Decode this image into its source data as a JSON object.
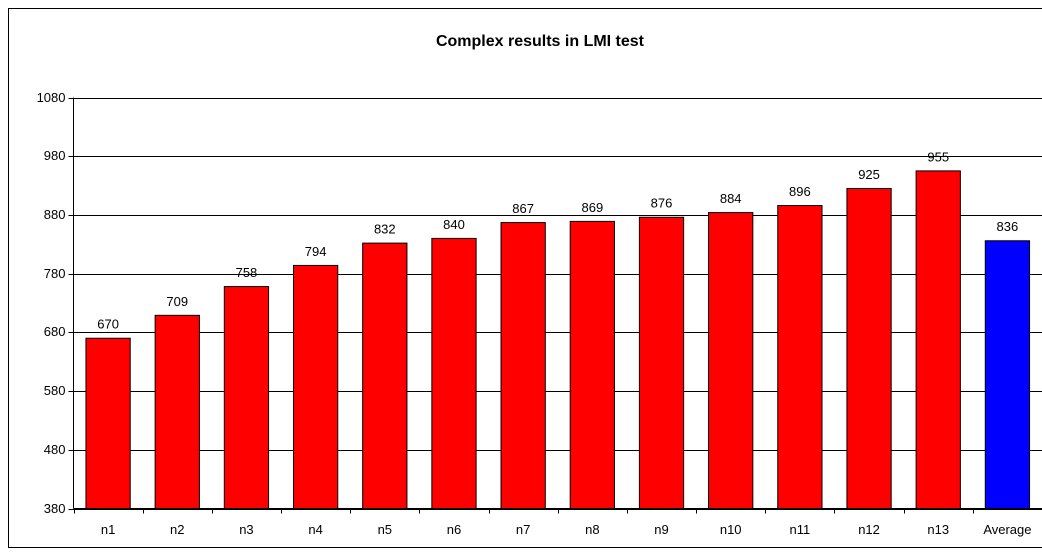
{
  "chart_data": {
    "type": "bar",
    "title": "Complex results in LMI test",
    "categories": [
      "n1",
      "n2",
      "n3",
      "n4",
      "n5",
      "n6",
      "n7",
      "n8",
      "n9",
      "n10",
      "n11",
      "n12",
      "n13",
      "Average"
    ],
    "values": [
      670,
      709,
      758,
      794,
      832,
      840,
      867,
      869,
      876,
      884,
      896,
      925,
      955,
      836
    ],
    "colors": [
      "#ff0000",
      "#ff0000",
      "#ff0000",
      "#ff0000",
      "#ff0000",
      "#ff0000",
      "#ff0000",
      "#ff0000",
      "#ff0000",
      "#ff0000",
      "#ff0000",
      "#ff0000",
      "#ff0000",
      "#0000ff"
    ],
    "ylim": [
      380,
      1080
    ],
    "yticks": [
      380,
      480,
      580,
      680,
      780,
      880,
      980,
      1080
    ],
    "grid": true
  }
}
